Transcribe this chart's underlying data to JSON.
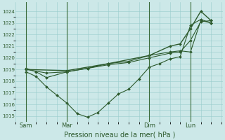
{
  "xlabel": "Pression niveau de la mer( hPa )",
  "bg_color": "#cce8e8",
  "grid_color": "#99cccc",
  "line_color": "#2d5a2d",
  "vline_color": "#3a6b3a",
  "ylim": [
    1014.5,
    1024.8
  ],
  "yticks": [
    1015,
    1016,
    1017,
    1018,
    1019,
    1020,
    1021,
    1022,
    1023,
    1024
  ],
  "xtick_labels": [
    "Sam",
    "Mar",
    "Dim",
    "Lun"
  ],
  "xtick_positions": [
    0,
    24,
    72,
    96
  ],
  "xlim": [
    -2,
    115
  ],
  "vline_positions": [
    0,
    24,
    72,
    96
  ],
  "line_detail": {
    "x": [
      0,
      6,
      12,
      18,
      24,
      30,
      36,
      42,
      48,
      54,
      60,
      66,
      72,
      78,
      84,
      90,
      96,
      102,
      108
    ],
    "y": [
      1018.8,
      1018.4,
      1017.5,
      1016.8,
      1016.1,
      1015.2,
      1014.9,
      1015.3,
      1016.1,
      1016.9,
      1017.3,
      1018.2,
      1019.2,
      1019.5,
      1019.9,
      1020.1,
      1022.8,
      1023.3,
      1023.0
    ]
  },
  "line_smooth1": {
    "x": [
      0,
      12,
      24,
      36,
      48,
      60,
      72,
      84,
      90,
      96,
      102,
      108
    ],
    "y": [
      1019.0,
      1018.7,
      1018.8,
      1019.1,
      1019.5,
      1019.7,
      1020.2,
      1020.5,
      1020.6,
      1020.5,
      1023.2,
      1023.0
    ]
  },
  "line_smooth2": {
    "x": [
      0,
      6,
      12,
      24,
      36,
      48,
      60,
      72,
      84,
      90,
      96,
      102,
      108
    ],
    "y": [
      1019.1,
      1018.8,
      1018.3,
      1018.8,
      1019.1,
      1019.4,
      1019.6,
      1020.0,
      1020.4,
      1020.5,
      1021.5,
      1023.1,
      1023.2
    ]
  },
  "line_diagonal": {
    "x": [
      0,
      24,
      48,
      72,
      84,
      90,
      96,
      102,
      108
    ],
    "y": [
      1019.0,
      1018.9,
      1019.5,
      1020.2,
      1021.0,
      1021.2,
      1022.5,
      1024.0,
      1023.2
    ]
  }
}
